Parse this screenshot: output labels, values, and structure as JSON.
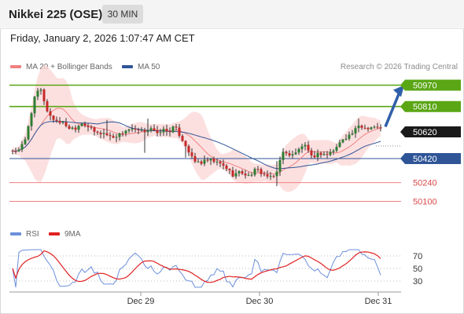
{
  "header": {
    "title": "Nikkei 225 (OSE)",
    "timeframe": "30 MIN"
  },
  "datetime": "Friday, January 2, 2026 1:07:47 AM CET",
  "legend": {
    "ma_bb_label": "MA 20 + Bollinger Bands",
    "ma50_label": "MA 50",
    "rsi_label": "RSI",
    "rsi_ma_label": "9MA",
    "colors": {
      "ma20": "#f08080",
      "bollinger": "#fbd6d6",
      "ma50": "#2f5597",
      "rsi": "#6c8fdc",
      "rsi_ma": "#e02020"
    }
  },
  "credit": "Research © 2026 Trading Central",
  "chart_data": [
    {
      "type": "candlestick",
      "ylim": [
        49950,
        51020
      ],
      "x_ticks": [
        "Dec 29",
        "Dec 30",
        "Dec 31"
      ],
      "levels": [
        {
          "value": 50970,
          "label": "50970",
          "kind": "resistance",
          "color": "#5aa615"
        },
        {
          "value": 50810,
          "label": "50810",
          "kind": "resistance",
          "color": "#5aa615"
        },
        {
          "value": 50620,
          "label": "50620",
          "kind": "current",
          "color": "#1a1a1a"
        },
        {
          "value": 50420,
          "label": "50420",
          "kind": "support",
          "color": "#2f5597"
        },
        {
          "value": 50240,
          "label": "50240",
          "kind": "support",
          "color": "#f08080"
        },
        {
          "value": 50100,
          "label": "50100",
          "kind": "support",
          "color": "#f08080"
        }
      ],
      "annotation": {
        "type": "arrow",
        "direction": "up",
        "target": 50970,
        "color": "#2f5fa8"
      }
    },
    {
      "type": "line",
      "series": [
        {
          "name": "RSI"
        },
        {
          "name": "9MA"
        }
      ],
      "ylim": [
        20,
        80
      ],
      "y_ticks": [
        70,
        50,
        30
      ]
    }
  ]
}
